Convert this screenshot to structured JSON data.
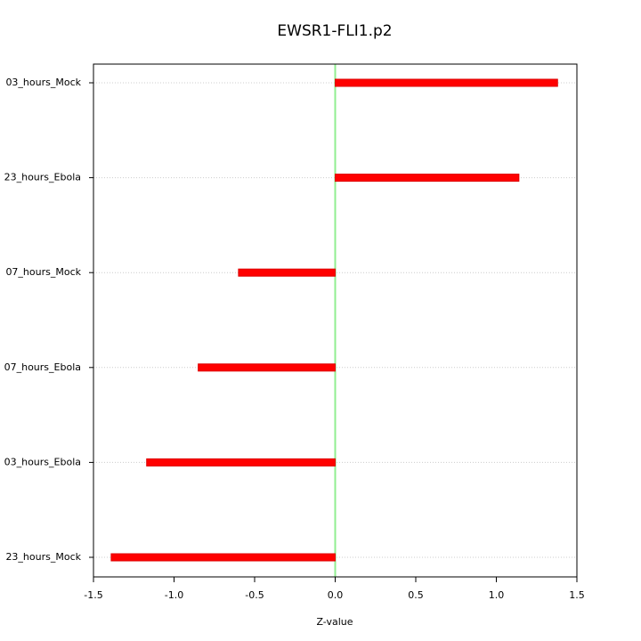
{
  "chart_data": {
    "type": "hbar",
    "title": "EWSR1-FLI1.p2",
    "x_label": "Z-value",
    "categories": [
      "03_hours_Mock",
      "23_hours_Ebola",
      "07_hours_Mock",
      "07_hours_Ebola",
      "03_hours_Ebola",
      "23_hours_Mock"
    ],
    "values": [
      1.38,
      1.14,
      -0.6,
      -0.85,
      -1.17,
      -1.39
    ],
    "color": "#ff0000",
    "xlim": [
      -1.5,
      1.5
    ],
    "xticks": [
      -1.5,
      {
        "value": -1,
        "label": "-1.0"
      },
      -0.5,
      {
        "value": 0,
        "label": "0.0"
      },
      0.5,
      {
        "value": 1,
        "label": "1.0"
      },
      1.5
    ],
    "reference_line": {
      "x": 0,
      "color": "#90ee90"
    },
    "grid": true
  }
}
